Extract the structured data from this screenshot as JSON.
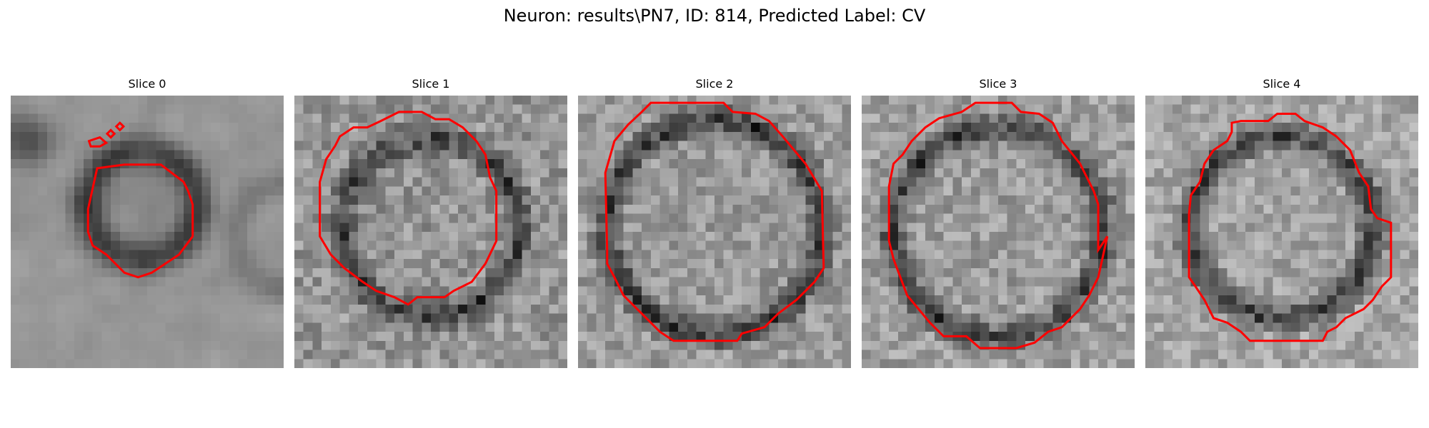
{
  "figure": {
    "title": "Neuron: results\\PN7, ID: 814, Predicted Label: CV"
  },
  "colors": {
    "contour": "#ff0000",
    "background": "#ffffff",
    "colormap": "gray"
  },
  "slices": [
    {
      "title": "Slice 0"
    },
    {
      "title": "Slice 1"
    },
    {
      "title": "Slice 2"
    },
    {
      "title": "Slice 3"
    },
    {
      "title": "Slice 4"
    }
  ]
}
